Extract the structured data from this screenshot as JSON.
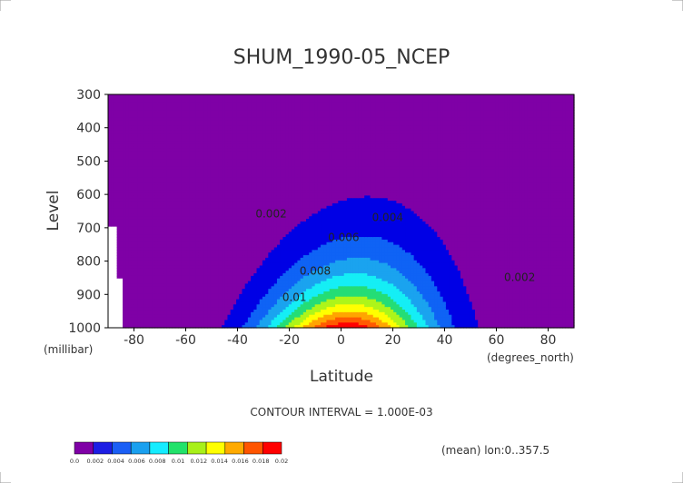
{
  "chart_data": {
    "type": "contour",
    "title": "SHUM_1990-05_NCEP",
    "xlabel": "Latitude",
    "ylabel": "Level",
    "x_units": "(degrees_north)",
    "y_units": "(millibar)",
    "xlim": [
      -90,
      90
    ],
    "ylim": [
      1000,
      300
    ],
    "x_ticks": [
      -80,
      -60,
      -40,
      -20,
      0,
      20,
      40,
      60,
      80
    ],
    "y_ticks": [
      300,
      400,
      500,
      600,
      700,
      800,
      900,
      1000
    ],
    "contour_interval_text": "CONTOUR INTERVAL = 1.000E-03",
    "mean_note": "(mean) lon:0..357.5",
    "contour_labels": [
      {
        "text": "0.002",
        "lat": -27,
        "lev": 669
      },
      {
        "text": "0.004",
        "lat": 18,
        "lev": 680
      },
      {
        "text": "0.006",
        "lat": 1,
        "lev": 740
      },
      {
        "text": "0.008",
        "lat": -10,
        "lev": 840
      },
      {
        "text": "0.01",
        "lat": -18,
        "lev": 920
      },
      {
        "text": "0.002",
        "lat": 69,
        "lev": 860
      }
    ],
    "levels": [
      0,
      0.002,
      0.004,
      0.006,
      0.008,
      0.01,
      0.012,
      0.014,
      0.016,
      0.018,
      0.02
    ],
    "level_labels": [
      "0.0",
      "0.002",
      "0.004",
      "0.006",
      "0.008",
      "0.01",
      "0.012",
      "0.014",
      "0.016",
      "0.018",
      "0.02"
    ],
    "colors": [
      "#7f00a6",
      "#1d1ee4",
      "#1b5ff5",
      "#1aa0ef",
      "#15ecff",
      "#22e26a",
      "#a8f019",
      "#ffff00",
      "#ffaa00",
      "#ff5500",
      "#ff0000"
    ],
    "fill_colors_by_band": [
      "#7f00a6",
      "#0000e5",
      "#0f63f5",
      "#1aa3ef",
      "#15eef5",
      "#24dd76",
      "#adf51a",
      "#ffff00",
      "#ffa500",
      "#ff5a00",
      "#ff0000"
    ]
  }
}
